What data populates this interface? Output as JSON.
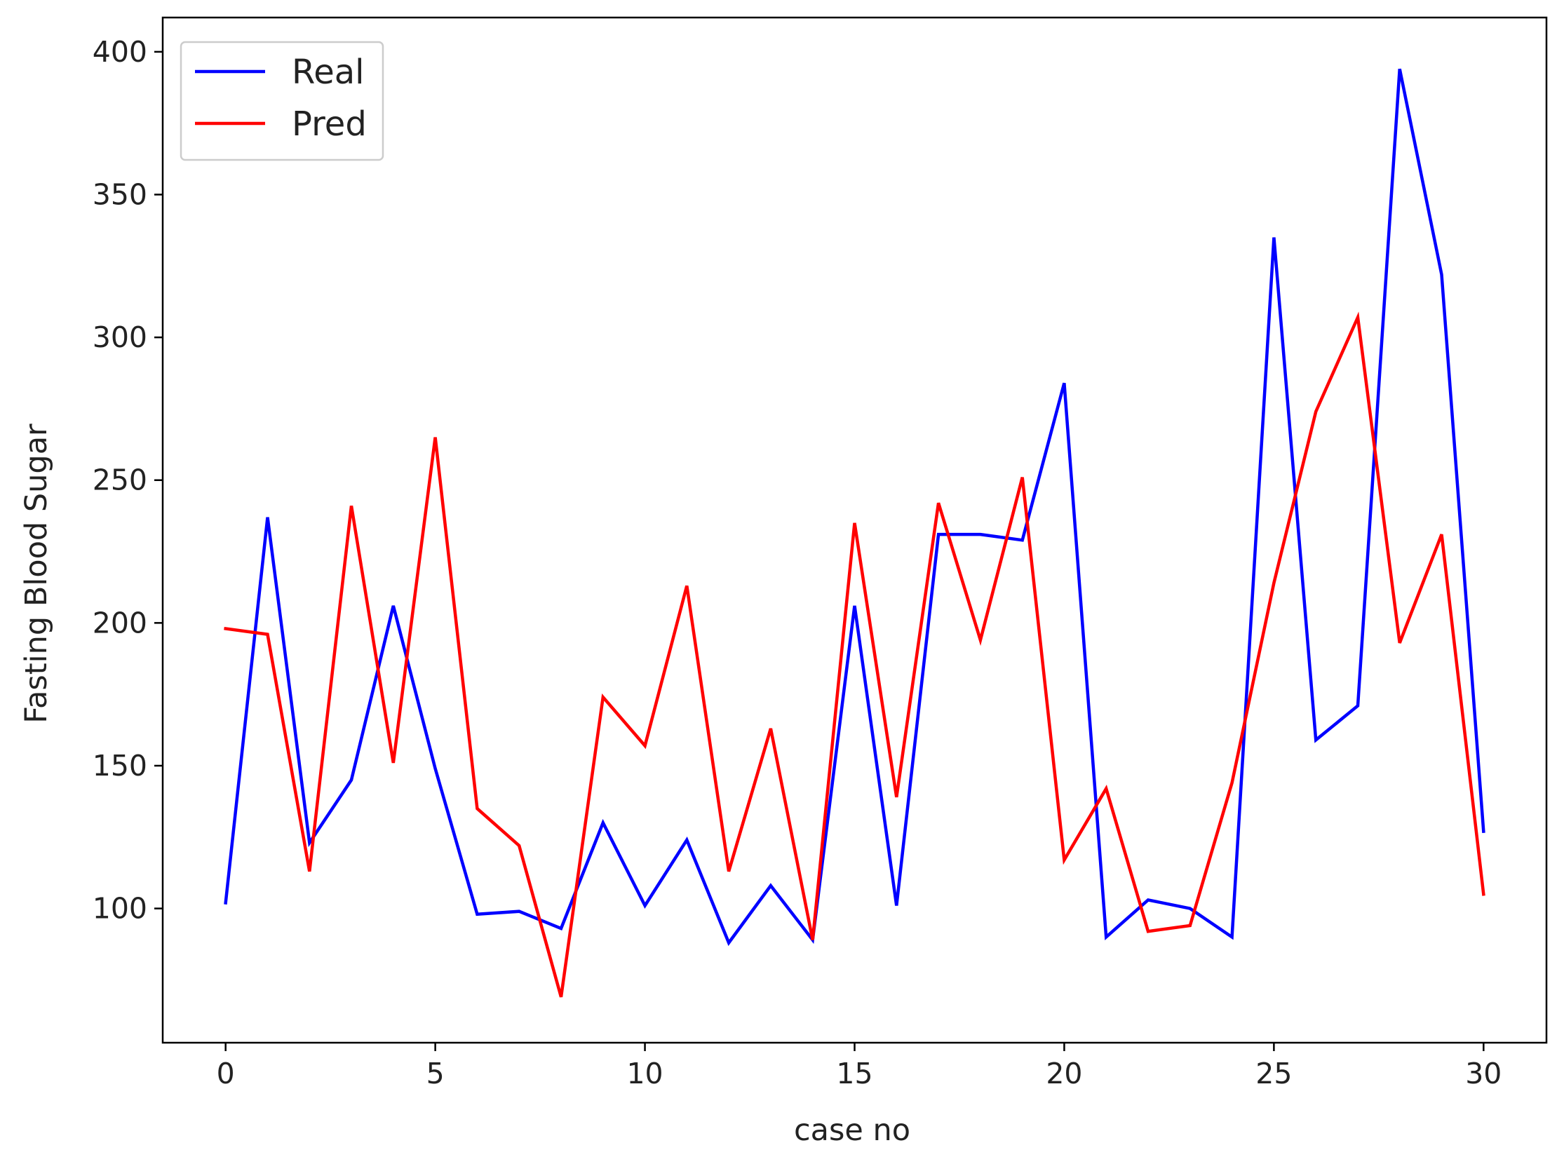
{
  "chart_data": {
    "type": "line",
    "title": "",
    "xlabel": "case no",
    "ylabel": "Fasting Blood Sugar",
    "xlim": [
      -1.5,
      31.5
    ],
    "ylim": [
      53,
      412
    ],
    "xticks": [
      0,
      5,
      10,
      15,
      20,
      25,
      30
    ],
    "yticks": [
      100,
      150,
      200,
      250,
      300,
      350,
      400
    ],
    "grid": false,
    "legend_position": "top-left",
    "x": [
      0,
      1,
      2,
      3,
      4,
      5,
      6,
      7,
      8,
      9,
      10,
      11,
      12,
      13,
      14,
      15,
      16,
      17,
      18,
      19,
      20,
      21,
      22,
      23,
      24,
      25,
      26,
      27,
      28,
      29,
      30
    ],
    "series": [
      {
        "name": "Real",
        "color": "#0000ff",
        "values": [
          102,
          237,
          123,
          145,
          206,
          149,
          98,
          99,
          93,
          130,
          101,
          124,
          88,
          108,
          89,
          206,
          101,
          231,
          231,
          229,
          284,
          90,
          103,
          100,
          90,
          335,
          159,
          171,
          394,
          322,
          127
        ]
      },
      {
        "name": "Pred",
        "color": "#ff0000",
        "values": [
          198,
          196,
          113,
          241,
          151,
          265,
          135,
          122,
          69,
          174,
          157,
          213,
          113,
          163,
          89,
          235,
          139,
          242,
          194,
          251,
          117,
          142,
          92,
          94,
          144,
          214,
          274,
          307,
          193,
          231,
          105
        ]
      }
    ]
  }
}
